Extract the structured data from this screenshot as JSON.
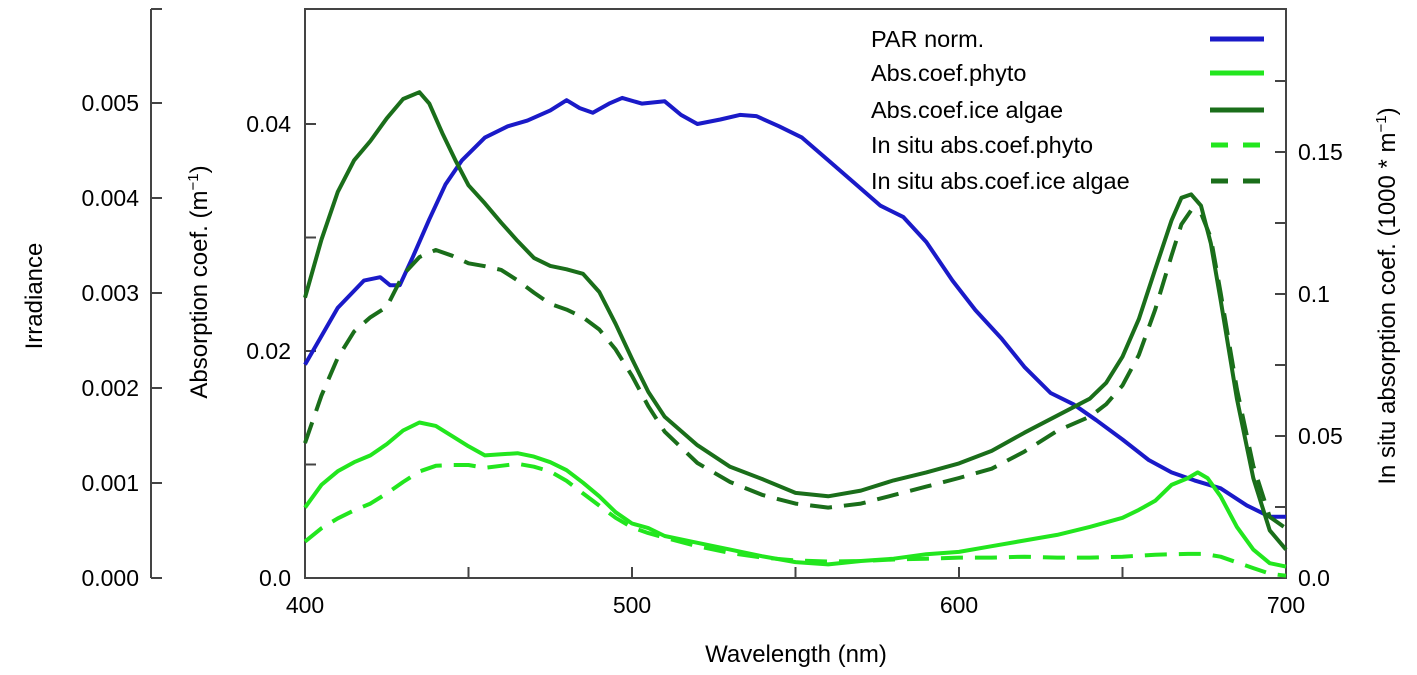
{
  "chart_data": {
    "type": "line",
    "title": "",
    "xlabel": "Wavelength (nm)",
    "xlim": [
      400,
      700
    ],
    "x_ticks": [
      "400",
      "500",
      "600",
      "700"
    ],
    "axes": {
      "irradiance": {
        "label": "Irradiance",
        "ylim": [
          0,
          0.006
        ],
        "tick_labels": [
          "0.000",
          "0.001",
          "0.002",
          "0.003",
          "0.004",
          "0.005"
        ],
        "tick_values": [
          0,
          0.001,
          0.002,
          0.003,
          0.004,
          0.005
        ]
      },
      "absorption": {
        "label": "Absorption coef. (m",
        "label_sup": "−1",
        "label_close": ")",
        "ylim": [
          0,
          0.05
        ],
        "tick_labels": [
          "0.0",
          "0.02",
          "0.04"
        ],
        "tick_values": [
          0,
          0.02,
          0.04
        ],
        "minor_tick_values": [
          0.01,
          0.03
        ]
      },
      "in_situ": {
        "label": "In situ absorption coef. (1000 * m",
        "label_sup": "−1",
        "label_close": ")",
        "ylim": [
          0,
          0.2
        ],
        "tick_labels": [
          "0.0",
          "0.05",
          "0.1",
          "0.15"
        ],
        "tick_values": [
          0,
          0.05,
          0.1,
          0.15
        ],
        "minor_tick_values": [
          0.025,
          0.075,
          0.125,
          0.175
        ]
      }
    },
    "legend_position": "top-right",
    "series": [
      {
        "name": "PAR norm.",
        "axis": "absorption",
        "color": "#1a1ac8",
        "dash": "solid",
        "x": [
          400,
          410,
          418,
          423,
          426,
          429,
          433,
          438,
          443,
          448,
          455,
          462,
          468,
          475,
          480,
          484,
          488,
          493,
          497,
          503,
          510,
          515,
          520,
          527,
          533,
          538,
          545,
          552,
          560,
          568,
          576,
          583,
          590,
          598,
          605,
          613,
          620,
          628,
          635,
          642,
          650,
          658,
          665,
          672,
          680,
          688,
          695,
          700
        ],
        "y": [
          0.0188,
          0.0238,
          0.0262,
          0.0265,
          0.0258,
          0.0258,
          0.0283,
          0.0316,
          0.0347,
          0.0368,
          0.0388,
          0.0398,
          0.0403,
          0.0412,
          0.0421,
          0.0414,
          0.041,
          0.0418,
          0.0423,
          0.0418,
          0.042,
          0.0408,
          0.04,
          0.0404,
          0.0408,
          0.0407,
          0.0398,
          0.0388,
          0.0368,
          0.0348,
          0.0328,
          0.0318,
          0.0296,
          0.0262,
          0.0236,
          0.0211,
          0.0186,
          0.0163,
          0.0153,
          0.0139,
          0.0122,
          0.0104,
          0.0093,
          0.0086,
          0.0079,
          0.0064,
          0.0054,
          0.0054
        ]
      },
      {
        "name": "Abs.coef.phyto",
        "axis": "absorption",
        "color": "#22e61e",
        "dash": "solid",
        "x": [
          400,
          405,
          410,
          415,
          420,
          425,
          430,
          435,
          440,
          445,
          450,
          455,
          460,
          465,
          470,
          475,
          480,
          485,
          490,
          495,
          500,
          505,
          510,
          520,
          530,
          540,
          550,
          560,
          570,
          580,
          590,
          600,
          610,
          620,
          630,
          640,
          650,
          655,
          660,
          665,
          670,
          673,
          676,
          680,
          685,
          690,
          695,
          700
        ],
        "y": [
          0.0062,
          0.0082,
          0.0094,
          0.0102,
          0.0108,
          0.0118,
          0.013,
          0.0137,
          0.0134,
          0.0125,
          0.0116,
          0.0108,
          0.0109,
          0.011,
          0.0107,
          0.0102,
          0.0095,
          0.0084,
          0.0072,
          0.0058,
          0.0048,
          0.0044,
          0.0037,
          0.0031,
          0.0025,
          0.0019,
          0.0014,
          0.0012,
          0.0015,
          0.0017,
          0.0021,
          0.0023,
          0.0028,
          0.0033,
          0.0038,
          0.0045,
          0.0053,
          0.006,
          0.0068,
          0.0082,
          0.0088,
          0.0093,
          0.0088,
          0.0072,
          0.0045,
          0.0025,
          0.0013,
          0.001
        ]
      },
      {
        "name": "Abs.coef.ice algae",
        "axis": "absorption",
        "color": "#1a6e1a",
        "dash": "solid",
        "x": [
          400,
          405,
          410,
          415,
          420,
          425,
          430,
          435,
          438,
          442,
          446,
          450,
          455,
          460,
          465,
          470,
          475,
          480,
          485,
          490,
          495,
          500,
          505,
          510,
          520,
          530,
          540,
          550,
          560,
          570,
          580,
          590,
          600,
          610,
          620,
          630,
          640,
          645,
          650,
          655,
          660,
          665,
          668,
          671,
          674,
          677,
          680,
          685,
          690,
          695,
          700
        ],
        "y": [
          0.0247,
          0.0298,
          0.034,
          0.0368,
          0.0385,
          0.0405,
          0.0422,
          0.0428,
          0.0418,
          0.0392,
          0.0368,
          0.0346,
          0.033,
          0.0313,
          0.0297,
          0.0282,
          0.0275,
          0.0272,
          0.0268,
          0.0252,
          0.0224,
          0.0193,
          0.0164,
          0.0142,
          0.0117,
          0.0098,
          0.0087,
          0.0075,
          0.0072,
          0.0077,
          0.0086,
          0.0093,
          0.0101,
          0.0112,
          0.0128,
          0.0143,
          0.0158,
          0.0172,
          0.0195,
          0.0228,
          0.0272,
          0.0315,
          0.0335,
          0.0338,
          0.0328,
          0.0295,
          0.0245,
          0.0158,
          0.0088,
          0.0042,
          0.0025
        ]
      },
      {
        "name": "In situ abs.coef.phyto",
        "axis": "in_situ",
        "color": "#22e61e",
        "dash": "dashed",
        "x": [
          400,
          405,
          410,
          415,
          420,
          425,
          430,
          435,
          440,
          445,
          450,
          455,
          460,
          465,
          470,
          475,
          480,
          485,
          490,
          495,
          500,
          505,
          510,
          520,
          530,
          540,
          550,
          560,
          570,
          580,
          590,
          600,
          610,
          620,
          630,
          640,
          650,
          660,
          670,
          675,
          680,
          685,
          690,
          695,
          700
        ],
        "y": [
          0.0128,
          0.0175,
          0.021,
          0.0238,
          0.0262,
          0.0298,
          0.0338,
          0.0375,
          0.0395,
          0.0398,
          0.0398,
          0.0388,
          0.0395,
          0.0402,
          0.0392,
          0.0375,
          0.0342,
          0.0298,
          0.0255,
          0.0212,
          0.0178,
          0.0158,
          0.0142,
          0.0112,
          0.0088,
          0.0072,
          0.0062,
          0.0058,
          0.006,
          0.0065,
          0.0068,
          0.0072,
          0.0072,
          0.0075,
          0.0072,
          0.0072,
          0.0075,
          0.0082,
          0.0085,
          0.0085,
          0.0075,
          0.0055,
          0.0035,
          0.0015,
          0.0008
        ]
      },
      {
        "name": "In situ abs.coef.ice algae",
        "axis": "in_situ",
        "color": "#1a6e1a",
        "dash": "dashed",
        "x": [
          400,
          405,
          410,
          415,
          420,
          425,
          430,
          435,
          440,
          445,
          450,
          455,
          460,
          465,
          470,
          475,
          480,
          485,
          490,
          495,
          500,
          505,
          510,
          520,
          530,
          540,
          550,
          560,
          570,
          580,
          590,
          600,
          610,
          620,
          630,
          640,
          645,
          650,
          655,
          660,
          665,
          668,
          671,
          674,
          677,
          680,
          685,
          690,
          695,
          700
        ],
        "y": [
          0.0475,
          0.0642,
          0.0775,
          0.0868,
          0.0918,
          0.0955,
          0.1068,
          0.113,
          0.1155,
          0.1135,
          0.1108,
          0.1098,
          0.1085,
          0.1048,
          0.1005,
          0.0965,
          0.0945,
          0.0918,
          0.0875,
          0.0805,
          0.0712,
          0.0605,
          0.0515,
          0.0405,
          0.0338,
          0.0292,
          0.0262,
          0.0248,
          0.0262,
          0.0292,
          0.0322,
          0.0352,
          0.0385,
          0.0445,
          0.0518,
          0.0568,
          0.0612,
          0.0678,
          0.0785,
          0.0945,
          0.1135,
          0.1245,
          0.1295,
          0.1285,
          0.1198,
          0.1005,
          0.0665,
          0.0395,
          0.0215,
          0.0175
        ]
      }
    ]
  }
}
